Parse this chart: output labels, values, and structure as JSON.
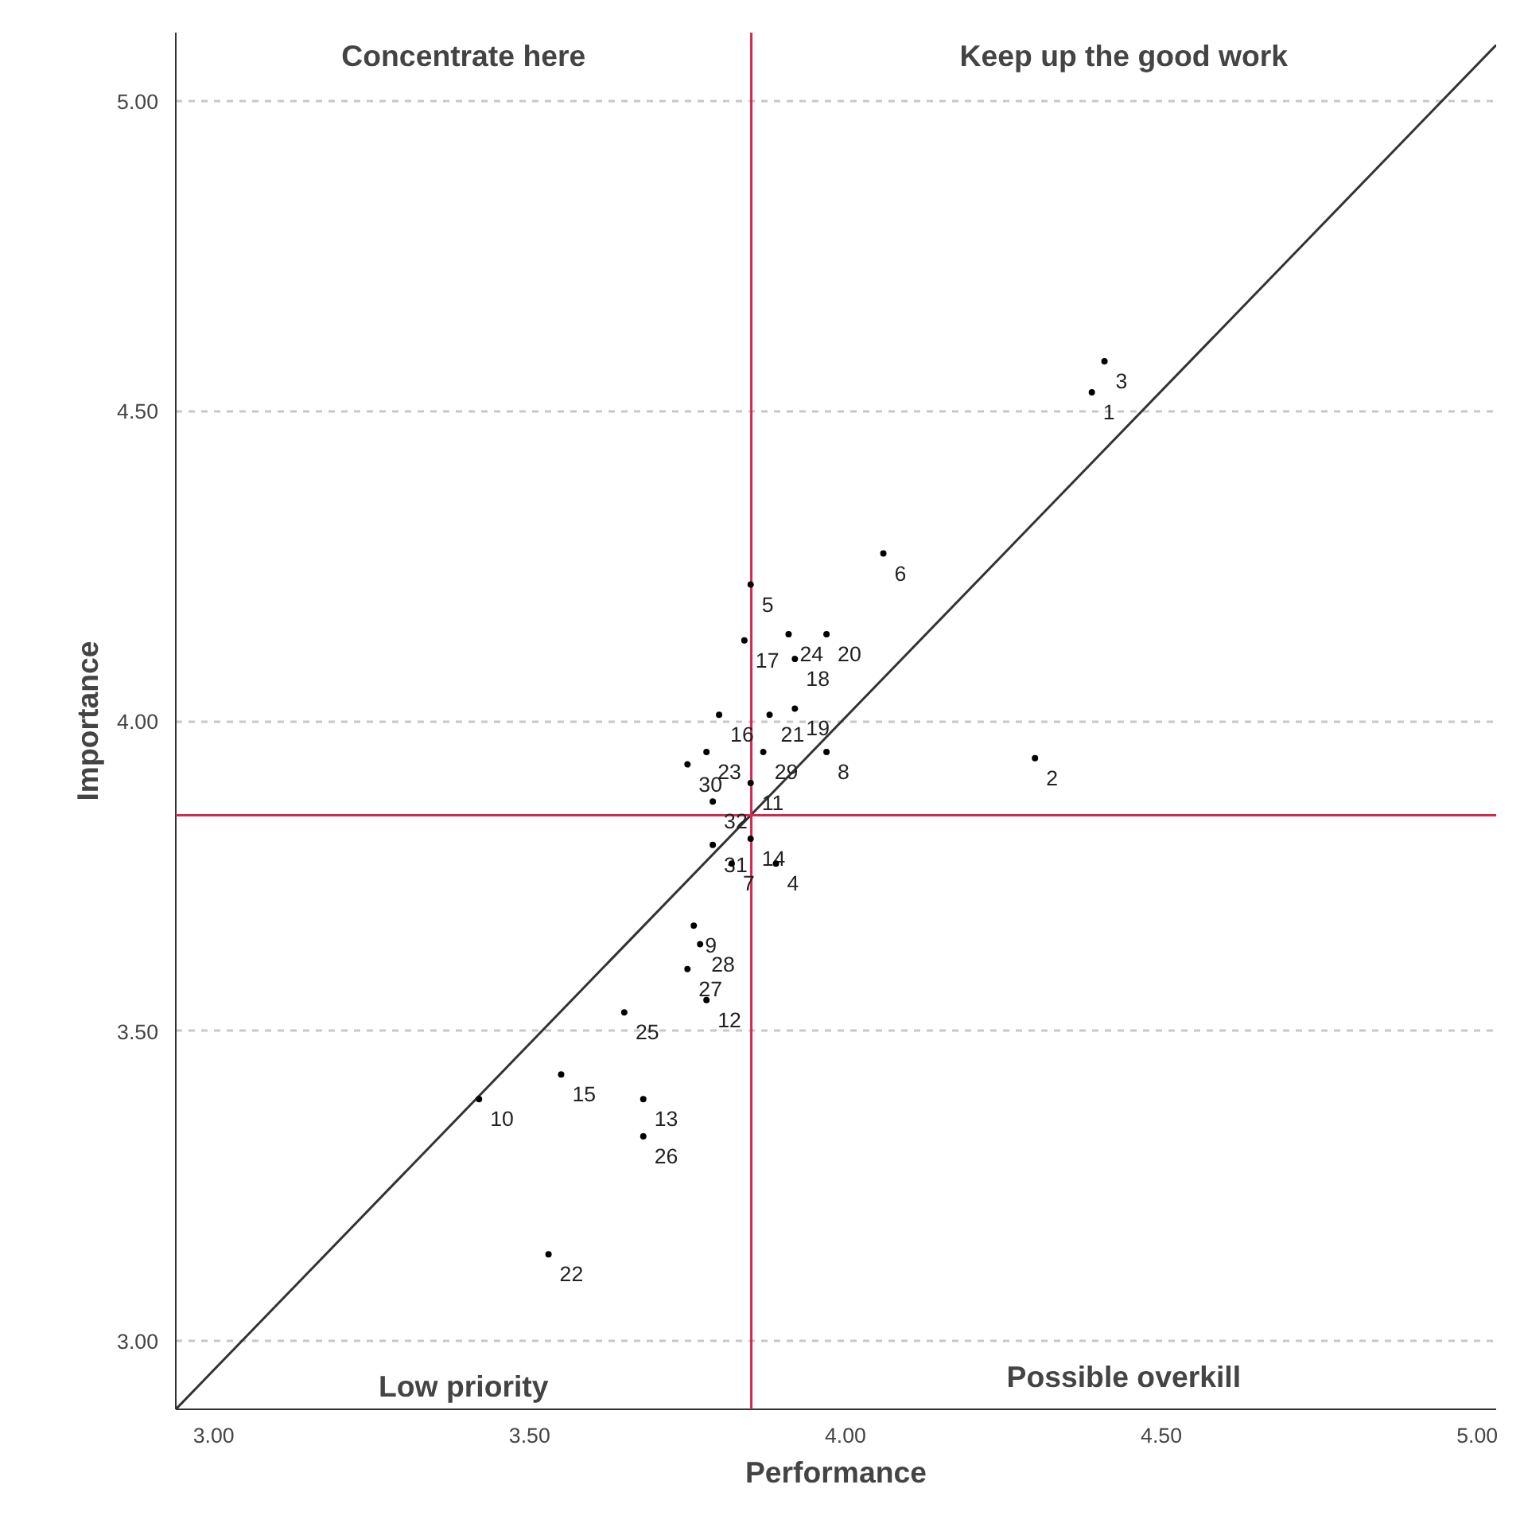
{
  "chart_data": {
    "type": "scatter",
    "xlabel": "Performance",
    "ylabel": "Importance",
    "x": [
      4.39,
      4.3,
      4.41,
      3.89,
      3.85,
      4.06,
      3.82,
      3.97,
      3.76,
      3.42,
      3.85,
      3.78,
      3.68,
      3.85,
      3.55,
      3.8,
      3.84,
      3.92,
      3.92,
      3.97,
      3.88,
      3.53,
      3.78,
      3.91,
      3.65,
      3.68,
      3.75,
      3.77,
      3.87,
      3.75,
      3.79,
      3.79
    ],
    "series": [
      {
        "color": "#000000",
        "marker": "circle",
        "values": [
          4.53,
          3.94,
          4.58,
          3.77,
          4.22,
          4.27,
          3.77,
          3.95,
          3.67,
          3.39,
          3.9,
          3.55,
          3.39,
          3.81,
          3.43,
          4.01,
          4.13,
          4.1,
          4.02,
          4.14,
          4.01,
          3.14,
          3.95,
          4.14,
          3.53,
          3.33,
          3.6,
          3.64,
          3.95,
          3.93,
          3.8,
          3.87
        ]
      },
      {
        "type": "line",
        "color": "#333333",
        "x": [
          2.94,
          5.03
        ],
        "values": [
          2.89,
          5.09
        ]
      }
    ],
    "xlim": [
      2.94,
      5.03
    ],
    "ylim": [
      2.89,
      5.11
    ],
    "xticks": [
      {
        "value": 3,
        "label": "3.00"
      },
      {
        "value": 3.5,
        "label": "3.50"
      },
      {
        "value": 4,
        "label": "4.00"
      },
      {
        "value": 4.5,
        "label": "4.50"
      },
      {
        "value": 5,
        "label": "5.00"
      }
    ],
    "yticks": [
      {
        "value": 3,
        "label": "3.00"
      },
      {
        "value": 3.5,
        "label": "3.50"
      },
      {
        "value": 4,
        "label": "4.00"
      },
      {
        "value": 4.5,
        "label": "4.50"
      },
      {
        "value": 5,
        "label": "5.00"
      }
    ],
    "ref_lines": [
      {
        "axis": "x",
        "value": 3.851,
        "color": "#d6284e"
      },
      {
        "axis": "y",
        "value": 3.848,
        "color": "#d6284e"
      }
    ],
    "annotations": [
      "Concentrate here",
      "Keep up the good work",
      "Low priority",
      "Possible overkill",
      {
        "text": "1",
        "x": 4.39,
        "y": 4.53
      },
      {
        "text": "2",
        "x": 4.3,
        "y": 3.94
      },
      {
        "text": "3",
        "x": 4.41,
        "y": 4.58
      },
      {
        "text": "4",
        "x": 3.89,
        "y": 3.77
      },
      {
        "text": "5",
        "x": 3.85,
        "y": 4.22
      },
      {
        "text": "6",
        "x": 4.06,
        "y": 4.27
      },
      {
        "text": "7",
        "x": 3.82,
        "y": 3.77
      },
      {
        "text": "8",
        "x": 3.97,
        "y": 3.95
      },
      {
        "text": "9",
        "x": 3.76,
        "y": 3.67
      },
      {
        "text": "10",
        "x": 3.42,
        "y": 3.39
      },
      {
        "text": "11",
        "x": 3.85,
        "y": 3.9
      },
      {
        "text": "12",
        "x": 3.78,
        "y": 3.55
      },
      {
        "text": "13",
        "x": 3.68,
        "y": 3.39
      },
      {
        "text": "14",
        "x": 3.85,
        "y": 3.81
      },
      {
        "text": "15",
        "x": 3.55,
        "y": 3.43
      },
      {
        "text": "16",
        "x": 3.8,
        "y": 4.01
      },
      {
        "text": "17",
        "x": 3.84,
        "y": 4.13
      },
      {
        "text": "18",
        "x": 3.92,
        "y": 4.1
      },
      {
        "text": "19",
        "x": 3.92,
        "y": 4.02
      },
      {
        "text": "20",
        "x": 3.97,
        "y": 4.14
      },
      {
        "text": "21",
        "x": 3.88,
        "y": 4.01
      },
      {
        "text": "22",
        "x": 3.53,
        "y": 3.14
      },
      {
        "text": "23",
        "x": 3.78,
        "y": 3.95
      },
      {
        "text": "24",
        "x": 3.91,
        "y": 4.14
      },
      {
        "text": "25",
        "x": 3.65,
        "y": 3.53
      },
      {
        "text": "26",
        "x": 3.68,
        "y": 3.33
      },
      {
        "text": "27",
        "x": 3.75,
        "y": 3.6
      },
      {
        "text": "28",
        "x": 3.77,
        "y": 3.64
      },
      {
        "text": "29",
        "x": 3.87,
        "y": 3.95
      },
      {
        "text": "30",
        "x": 3.75,
        "y": 3.93
      },
      {
        "text": "31",
        "x": 3.79,
        "y": 3.8
      },
      {
        "text": "32",
        "x": 3.79,
        "y": 3.87
      }
    ],
    "grid": "y"
  }
}
